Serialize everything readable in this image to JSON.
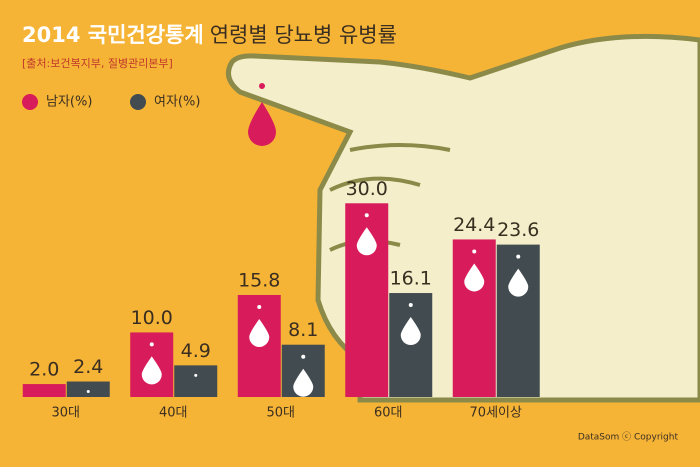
{
  "chart_data": {
    "type": "bar",
    "title": [
      "2014 국민건강통계",
      "연령별 당뇨병 유병률"
    ],
    "source": "[출처:보건복지부, 질병관리본부]",
    "footer": "DataSom ⓒ Copyright",
    "categories": [
      "30대",
      "40대",
      "50대",
      "60대",
      "70세이상"
    ],
    "series": [
      {
        "name": "남자(%)",
        "color": "#d81b5a",
        "values": [
          2.0,
          10.0,
          15.8,
          30.0,
          24.4
        ],
        "value_labels": [
          "2.0",
          "10.0",
          "15.8",
          "30.0",
          "24.4"
        ]
      },
      {
        "name": "여자(%)",
        "color": "#414b50",
        "values": [
          2.4,
          4.9,
          8.1,
          16.1,
          23.6
        ]
      }
    ],
    "ylim": [
      0,
      35
    ]
  }
}
